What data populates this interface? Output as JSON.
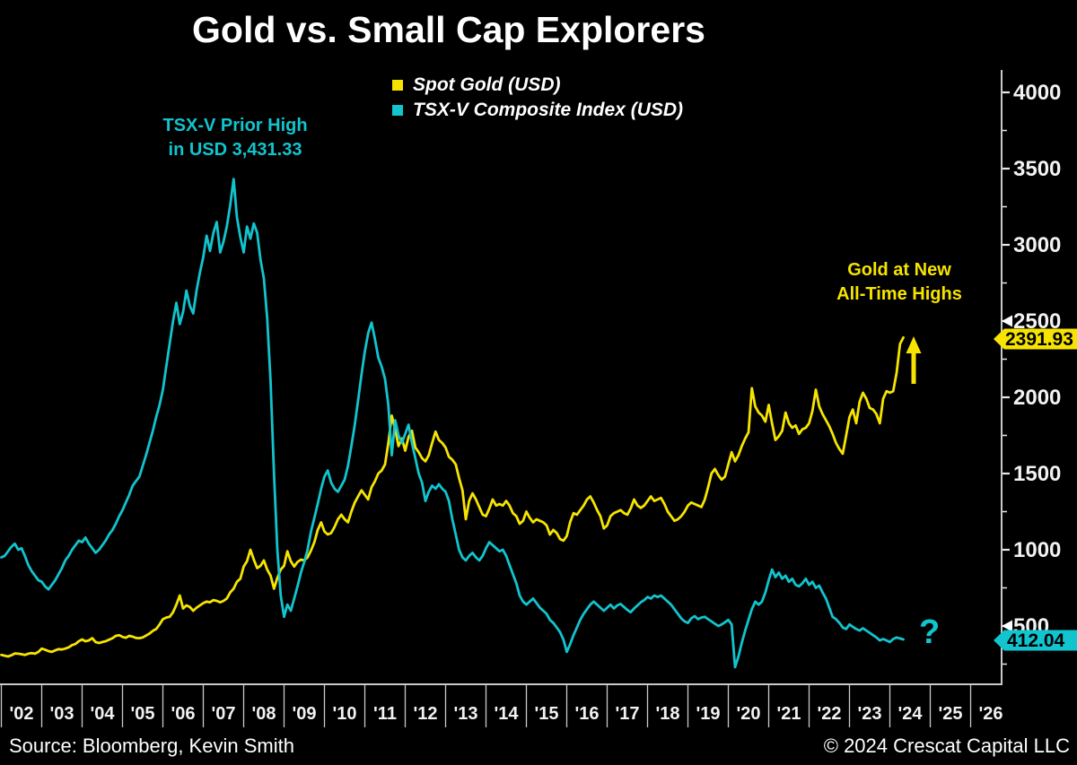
{
  "title": "Gold vs. Small Cap Explorers",
  "legend": [
    {
      "label": "Spot Gold (USD)"
    },
    {
      "label": "TSX-V Composite Index (USD)"
    }
  ],
  "annotations": {
    "tsxv_prior_high_line1": "TSX-V Prior High",
    "tsxv_prior_high_line2": "in USD 3,431.33",
    "gold_high_line1": "Gold at New",
    "gold_high_line2": "All-Time Highs",
    "question_mark": "?"
  },
  "badges": {
    "gold_last": "2391.93",
    "tsxv_last": "412.04"
  },
  "footer": {
    "source": "Source: Bloomberg, Kevin Smith",
    "copyright": "© 2024 Crescat Capital LLC"
  },
  "colors": {
    "background": "#000000",
    "gold": "#F6E400",
    "cyan": "#12C4CE",
    "axis_line": "#C9C9C9",
    "tick": "#E8E8E8",
    "tick_label": "#F2F2F2",
    "badge_text": "#000000",
    "marker_white": "#FFFFFF"
  },
  "chart_data": {
    "type": "line",
    "title": "Gold vs. Small Cap Explorers",
    "xlabel": "",
    "ylabel": "",
    "grid": false,
    "legend_position": "top-center",
    "x_axis": {
      "labels": [
        "'02",
        "'03",
        "'04",
        "'05",
        "'06",
        "'07",
        "'08",
        "'09",
        "'10",
        "'11",
        "'12",
        "'13",
        "'14",
        "'15",
        "'16",
        "'17",
        "'18",
        "'19",
        "'20",
        "'21",
        "'22",
        "'23",
        "'24",
        "'25",
        "'26"
      ],
      "start_year": 2002,
      "end_year": 2027
    },
    "y_axis": {
      "major_ticks": [
        500,
        1000,
        1500,
        2000,
        2500,
        3000,
        3500,
        4000
      ],
      "minor_ticks": [
        250,
        750,
        1250,
        1750,
        2250,
        2750,
        3250,
        3750
      ],
      "range": [
        118,
        4147
      ]
    },
    "series": [
      {
        "name": "Spot Gold (USD)",
        "color": "#F6E400",
        "start_year": 2002,
        "interval_months": 1,
        "last_value": 2391.93,
        "values": [
          310,
          305,
          300,
          308,
          320,
          318,
          315,
          310,
          318,
          322,
          318,
          330,
          352,
          345,
          335,
          330,
          340,
          348,
          346,
          352,
          360,
          375,
          382,
          400,
          412,
          400,
          405,
          420,
          395,
          388,
          395,
          400,
          410,
          420,
          435,
          440,
          428,
          423,
          435,
          430,
          422,
          420,
          425,
          437,
          450,
          468,
          480,
          510,
          545,
          555,
          560,
          590,
          640,
          700,
          615,
          635,
          625,
          600,
          620,
          635,
          650,
          660,
          655,
          670,
          665,
          655,
          665,
          680,
          720,
          745,
          790,
          810,
          890,
          925,
          1000,
          935,
          880,
          895,
          930,
          870,
          830,
          745,
          815,
          870,
          895,
          990,
          925,
          890,
          920,
          935,
          930,
          950,
          995,
          1050,
          1130,
          1180,
          1120,
          1100,
          1110,
          1150,
          1200,
          1230,
          1200,
          1180,
          1250,
          1310,
          1350,
          1390,
          1360,
          1330,
          1410,
          1450,
          1500,
          1520,
          1560,
          1700,
          1880,
          1790,
          1680,
          1730,
          1650,
          1740,
          1780,
          1670,
          1640,
          1600,
          1580,
          1620,
          1700,
          1775,
          1720,
          1700,
          1670,
          1610,
          1590,
          1560,
          1470,
          1390,
          1200,
          1320,
          1370,
          1330,
          1280,
          1230,
          1220,
          1270,
          1330,
          1290,
          1300,
          1290,
          1320,
          1290,
          1240,
          1220,
          1170,
          1190,
          1250,
          1210,
          1180,
          1200,
          1190,
          1180,
          1160,
          1100,
          1130,
          1110,
          1070,
          1060,
          1090,
          1180,
          1240,
          1230,
          1260,
          1290,
          1330,
          1350,
          1310,
          1260,
          1220,
          1140,
          1160,
          1220,
          1240,
          1250,
          1260,
          1240,
          1230,
          1270,
          1330,
          1290,
          1275,
          1290,
          1320,
          1350,
          1320,
          1330,
          1340,
          1300,
          1250,
          1220,
          1190,
          1200,
          1220,
          1250,
          1290,
          1310,
          1300,
          1290,
          1280,
          1330,
          1410,
          1500,
          1530,
          1490,
          1460,
          1480,
          1560,
          1640,
          1580,
          1620,
          1680,
          1730,
          1770,
          2060,
          1940,
          1900,
          1880,
          1840,
          1950,
          1830,
          1720,
          1745,
          1780,
          1900,
          1830,
          1800,
          1815,
          1760,
          1790,
          1800,
          1830,
          1910,
          2050,
          1940,
          1890,
          1850,
          1810,
          1760,
          1700,
          1660,
          1630,
          1750,
          1870,
          1920,
          1830,
          1970,
          2030,
          1990,
          1930,
          1920,
          1890,
          1830,
          1990,
          2040,
          2030,
          2040,
          2160,
          2350,
          2391.93
        ]
      },
      {
        "name": "TSX-V Composite Index (USD)",
        "color": "#12C4CE",
        "start_year": 2002,
        "interval_months": 1,
        "last_value": 412.04,
        "prior_high": 3431.33,
        "values": [
          950,
          960,
          990,
          1020,
          1040,
          1000,
          1010,
          960,
          900,
          860,
          830,
          800,
          790,
          760,
          740,
          770,
          800,
          840,
          880,
          930,
          960,
          1000,
          1030,
          1060,
          1050,
          1080,
          1040,
          1010,
          980,
          1000,
          1030,
          1060,
          1100,
          1130,
          1170,
          1220,
          1260,
          1310,
          1360,
          1420,
          1450,
          1480,
          1550,
          1620,
          1700,
          1780,
          1870,
          1950,
          2050,
          2200,
          2350,
          2500,
          2620,
          2480,
          2560,
          2700,
          2600,
          2550,
          2700,
          2820,
          2920,
          3060,
          2960,
          3080,
          3150,
          2950,
          3020,
          3120,
          3260,
          3431.33,
          3180,
          3050,
          2950,
          3120,
          3040,
          3140,
          3080,
          2900,
          2780,
          2520,
          2100,
          1500,
          1000,
          700,
          560,
          640,
          600,
          680,
          760,
          850,
          920,
          1000,
          1120,
          1210,
          1300,
          1400,
          1480,
          1520,
          1440,
          1400,
          1380,
          1420,
          1460,
          1550,
          1680,
          1820,
          1980,
          2150,
          2300,
          2420,
          2490,
          2380,
          2260,
          2200,
          2120,
          1950,
          1620,
          1850,
          1750,
          1700,
          1760,
          1820,
          1700,
          1600,
          1500,
          1440,
          1320,
          1380,
          1420,
          1400,
          1430,
          1400,
          1380,
          1320,
          1200,
          1100,
          1000,
          950,
          930,
          960,
          980,
          950,
          930,
          960,
          1010,
          1050,
          1030,
          1010,
          990,
          1000,
          960,
          900,
          840,
          780,
          700,
          660,
          640,
          660,
          680,
          650,
          620,
          600,
          580,
          540,
          520,
          490,
          460,
          410,
          330,
          380,
          440,
          490,
          540,
          580,
          610,
          640,
          660,
          640,
          620,
          600,
          620,
          640,
          615,
          635,
          645,
          625,
          605,
          590,
          615,
          635,
          655,
          670,
          690,
          680,
          700,
          690,
          700,
          680,
          660,
          640,
          610,
          580,
          550,
          530,
          520,
          550,
          565,
          545,
          555,
          560,
          545,
          530,
          515,
          500,
          510,
          525,
          540,
          510,
          230,
          300,
          390,
          470,
          540,
          610,
          660,
          640,
          660,
          720,
          800,
          870,
          820,
          850,
          810,
          830,
          790,
          810,
          770,
          760,
          780,
          810,
          770,
          790,
          750,
          765,
          720,
          680,
          620,
          560,
          545,
          520,
          490,
          480,
          510,
          495,
          480,
          470,
          485,
          470,
          455,
          440,
          425,
          405,
          415,
          405,
          395,
          415,
          425,
          418,
          412.04
        ]
      }
    ]
  }
}
